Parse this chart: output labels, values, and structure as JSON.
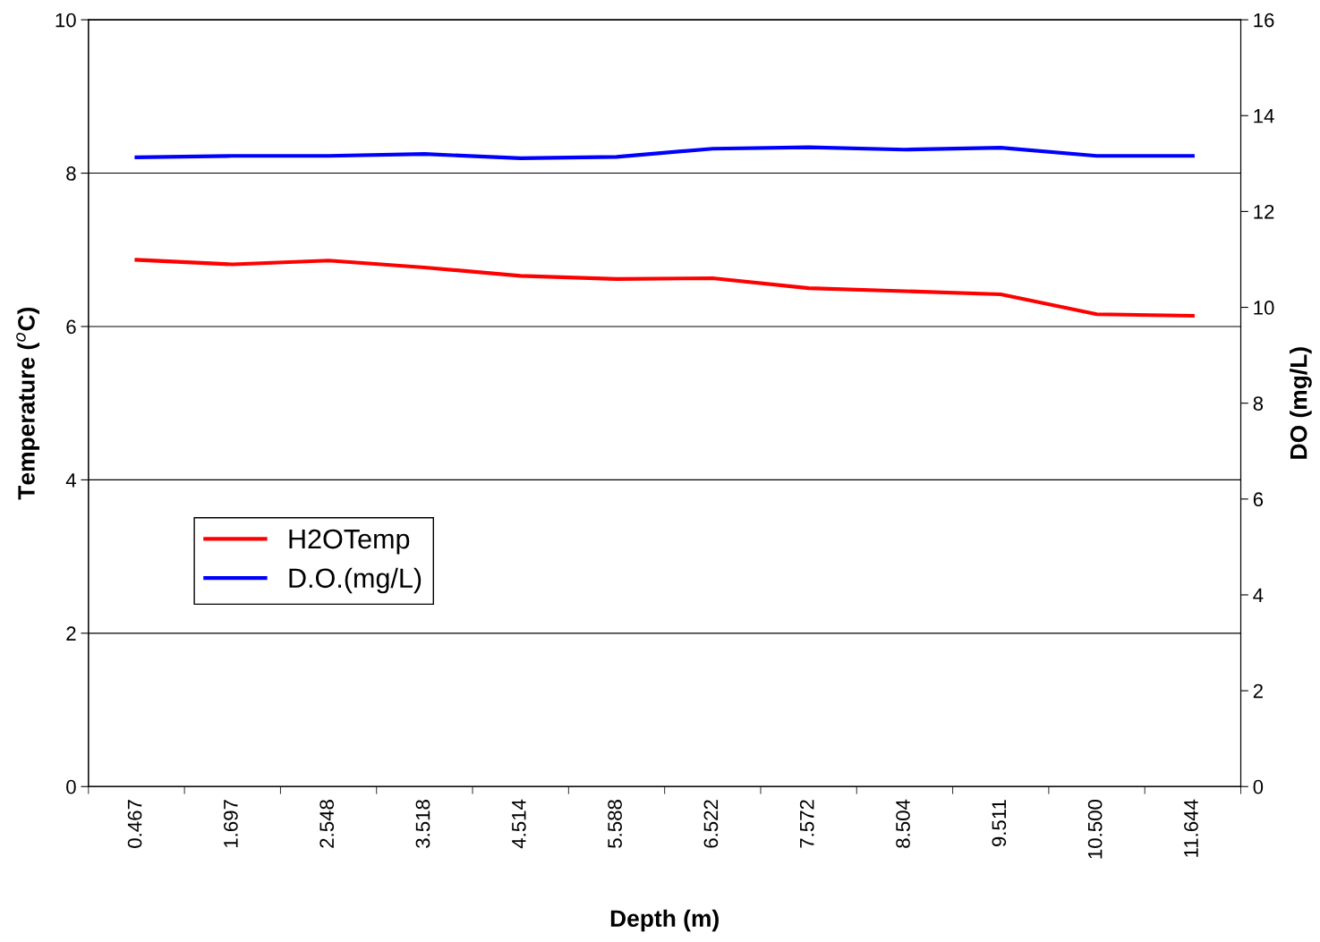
{
  "chart_data": {
    "type": "line",
    "xlabel": "Depth (m)",
    "ylabel": "Temperature ($^{o}$C)",
    "y2label": "DO (mg/L)",
    "categories": [
      "0.467",
      "1.697",
      "2.548",
      "3.518",
      "4.514",
      "5.588",
      "6.522",
      "7.572",
      "8.504",
      "9.511",
      "10.500",
      "11.644"
    ],
    "series": [
      {
        "name": "H2OTemp",
        "color": "#ff0000",
        "values": [
          6.87,
          6.81,
          6.86,
          6.77,
          6.66,
          6.62,
          6.63,
          6.5,
          6.46,
          6.42,
          6.16,
          6.14
        ]
      },
      {
        "name": "D.O.(mg/L)",
        "color": "#0000ff",
        "axis": "y2",
        "values": [
          13.13,
          13.16,
          13.16,
          13.2,
          13.11,
          13.14,
          13.31,
          13.34,
          13.29,
          13.33,
          13.16,
          13.16
        ]
      }
    ],
    "ylim": [
      0,
      10
    ],
    "yticks": [
      0,
      2,
      4,
      6,
      8,
      10
    ],
    "y2lim": [
      0,
      16
    ],
    "y2ticks": [
      0,
      2,
      4,
      6,
      8,
      10,
      12,
      14,
      16
    ],
    "grid": "y",
    "legend": "bottom left",
    "marker": "none",
    "line_style": "solid"
  }
}
